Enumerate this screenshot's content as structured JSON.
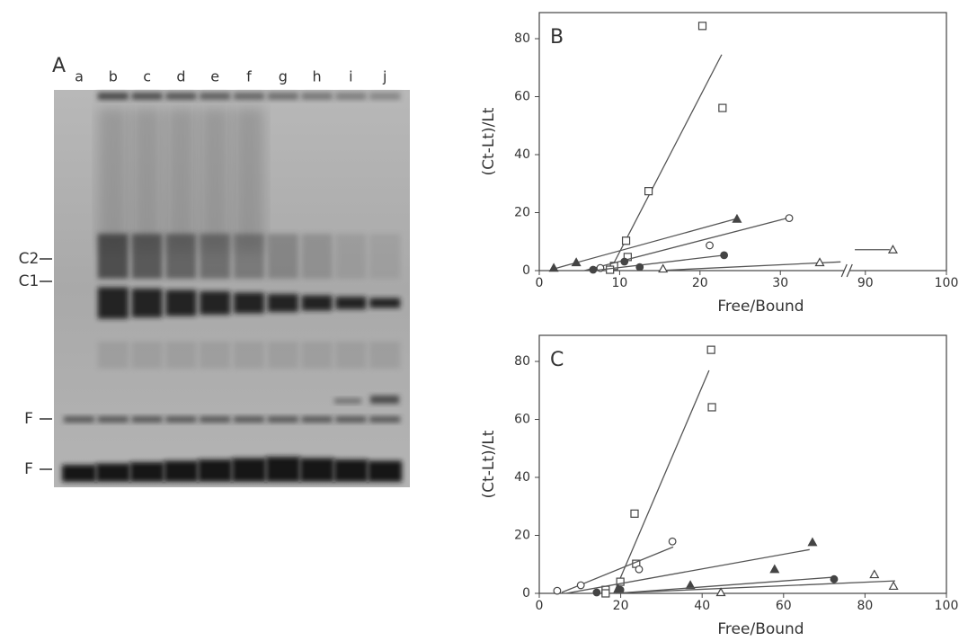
{
  "panel_a": {
    "label": "A",
    "lanes": [
      "a",
      "b",
      "c",
      "d",
      "e",
      "f",
      "g",
      "h",
      "i",
      "j"
    ],
    "markers": [
      "C2",
      "C1",
      "F",
      "F"
    ]
  },
  "chart_data": [
    {
      "type": "scatter",
      "label": "B",
      "x_label": "Free/Bound",
      "y_label": "(Ct-Lt)/Lt",
      "xlim": [
        0,
        100
      ],
      "xbreak": [
        38,
        88
      ],
      "ylim": [
        0,
        89
      ],
      "xticks": [
        0,
        10,
        20,
        30,
        90,
        100
      ],
      "yticks": [
        0,
        20,
        40,
        60,
        80
      ],
      "series": [
        {
          "marker": "open-square",
          "color": "#444",
          "x": [
            20.3,
            22.8,
            13.6,
            10.8,
            11.0,
            9.3,
            8.8
          ],
          "values": [
            84.4,
            56.1,
            27.4,
            10.3,
            4.7,
            1.6,
            0.3
          ],
          "fit_x": [
            8.8,
            22.7
          ],
          "fit_y": [
            0,
            74.5
          ]
        },
        {
          "marker": "open-circle",
          "color": "#444",
          "x": [
            31.1,
            21.2,
            7.6
          ],
          "values": [
            18.1,
            8.7,
            0.9
          ],
          "fit_x": [
            5.6,
            31.3
          ],
          "fit_y": [
            0,
            18.4
          ]
        },
        {
          "marker": "filled-triangle",
          "color": "#444",
          "x": [
            24.6,
            4.6,
            1.8
          ],
          "values": [
            17.8,
            2.8,
            0.9
          ],
          "fit_x": [
            1.8,
            24.8
          ],
          "fit_y": [
            0.6,
            18.1
          ]
        },
        {
          "marker": "filled-circle",
          "color": "#444",
          "x": [
            23.0,
            10.6,
            12.5,
            6.7
          ],
          "values": [
            5.3,
            3.1,
            1.2,
            0.3
          ],
          "fit_x": [
            6.7,
            23.0
          ],
          "fit_y": [
            0,
            5.3
          ]
        },
        {
          "marker": "open-triangle",
          "color": "#444",
          "x": [
            93.4,
            34.9,
            15.4
          ],
          "values": [
            7.2,
            2.8,
            0.6
          ],
          "fit_x": [
            14.8,
            37.5,
            null,
            88.7,
            93.0
          ],
          "fit_y": [
            0,
            3.0,
            null,
            7.2,
            7.2
          ]
        }
      ]
    },
    {
      "type": "scatter",
      "label": "C",
      "x_label": "Free/Bound",
      "y_label": "(Ct-Lt)/Lt",
      "xlim": [
        0,
        100
      ],
      "ylim": [
        0,
        89
      ],
      "xticks": [
        0,
        20,
        40,
        60,
        80,
        100
      ],
      "yticks": [
        0,
        20,
        40,
        60,
        80
      ],
      "series": [
        {
          "marker": "open-square",
          "color": "#444",
          "x": [
            42.2,
            42.4,
            23.4,
            23.8,
            19.9,
            16.3,
            16.3
          ],
          "values": [
            84,
            64.2,
            27.5,
            10.2,
            4.0,
            1.2,
            0
          ],
          "fit_x": [
            18.3,
            41.7
          ],
          "fit_y": [
            0,
            76.9
          ]
        },
        {
          "marker": "open-circle",
          "color": "#444",
          "x": [
            32.7,
            24.5,
            10.2,
            4.4
          ],
          "values": [
            17.9,
            8.3,
            2.8,
            0.9
          ],
          "fit_x": [
            5.5,
            32.9
          ],
          "fit_y": [
            0.3,
            16
          ]
        },
        {
          "marker": "filled-triangle",
          "color": "#444",
          "x": [
            67.1,
            57.8,
            37.1,
            19.4
          ],
          "values": [
            17.6,
            8.3,
            2.8,
            1.5
          ],
          "fit_x": [
            6.6,
            66.4
          ],
          "fit_y": [
            0,
            15.1
          ]
        },
        {
          "marker": "filled-circle",
          "color": "#444",
          "x": [
            72.4,
            19.9,
            14.1
          ],
          "values": [
            4.9,
            1.2,
            0.3
          ],
          "fit_x": [
            18.8,
            72.6
          ],
          "fit_y": [
            0,
            5.6
          ]
        },
        {
          "marker": "open-triangle",
          "color": "#444",
          "x": [
            82.3,
            87.0,
            44.6
          ],
          "values": [
            6.5,
            2.5,
            0.3
          ],
          "fit_x": [
            17.2,
            87.4
          ],
          "fit_y": [
            0,
            4.3
          ]
        }
      ]
    }
  ]
}
